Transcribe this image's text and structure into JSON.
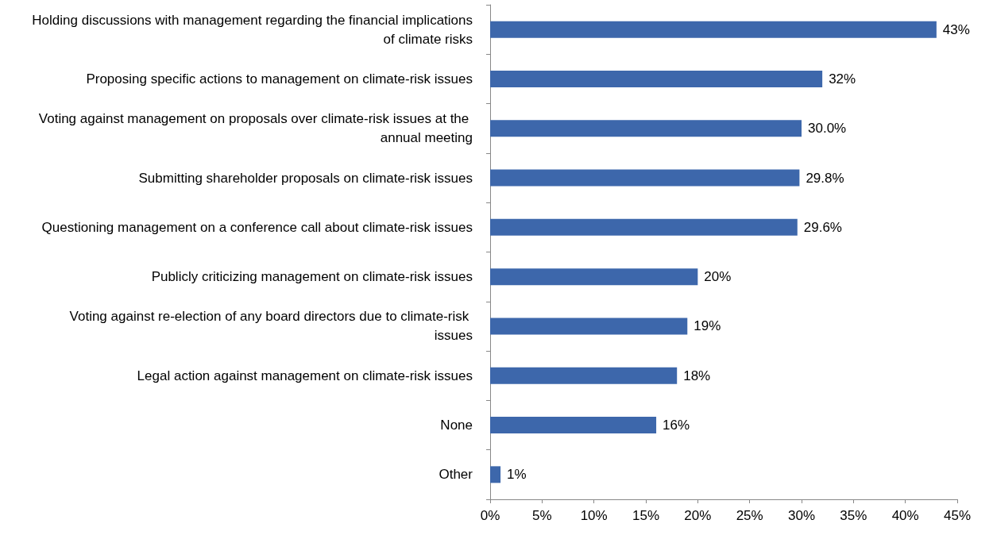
{
  "chart_data": {
    "type": "bar",
    "orientation": "horizontal",
    "categories": [
      "Holding discussions with management regarding the financial implications of climate risks",
      "Proposing specific actions to management on climate-risk issues",
      "Voting against management on proposals over climate-risk issues at the annual meeting",
      "Submitting shareholder proposals on climate-risk issues",
      "Questioning management on a conference call about climate-risk issues",
      "Publicly criticizing management on climate-risk issues",
      "Voting against re-election of any board directors due to climate-risk issues",
      "Legal action against management on climate-risk issues",
      "None",
      "Other"
    ],
    "values": [
      43,
      32,
      30.0,
      29.8,
      29.6,
      20,
      19,
      18,
      16,
      1
    ],
    "value_labels": [
      "43%",
      "32%",
      "30.0%",
      "29.8%",
      "29.6%",
      "20%",
      "19%",
      "18%",
      "16%",
      "1%"
    ],
    "color": "#3d67ab",
    "xlim": [
      0,
      45
    ],
    "xticks": [
      {
        "value": 0,
        "label": "0%"
      },
      {
        "value": 5,
        "label": "5%"
      },
      {
        "value": 10,
        "label": "10%"
      },
      {
        "value": 15,
        "label": "15%"
      },
      {
        "value": 20,
        "label": "20%"
      },
      {
        "value": 25,
        "label": "25%"
      },
      {
        "value": 30,
        "label": "30%"
      },
      {
        "value": 35,
        "label": "35%"
      },
      {
        "value": 40,
        "label": "40%"
      },
      {
        "value": 45,
        "label": "45%"
      }
    ],
    "grid": false
  }
}
